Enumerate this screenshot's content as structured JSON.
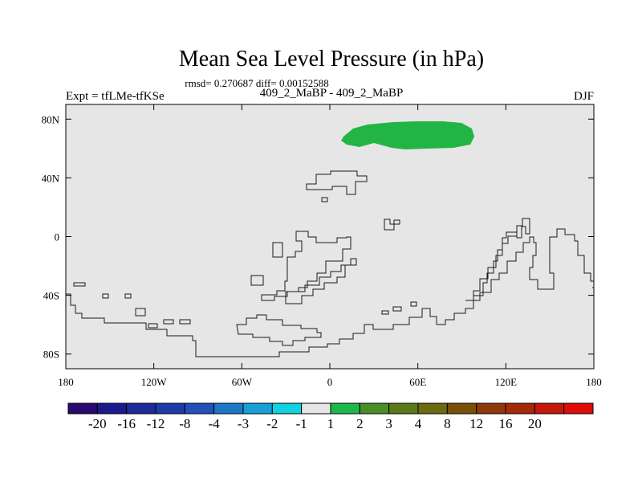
{
  "title": "Mean Sea Level Pressure (in hPa)",
  "stats": "rmsd= 0.270687 diff= 0.00152588",
  "left_label": "Expt = tfLMe-tfKSe",
  "center_label": "409_2_MaBP - 409_2_MaBP",
  "right_label": "DJF",
  "lat_ticks": [
    {
      "value": 80,
      "label": "80N"
    },
    {
      "value": 40,
      "label": "40N"
    },
    {
      "value": 0,
      "label": "0"
    },
    {
      "value": -40,
      "label": "40S"
    },
    {
      "value": -80,
      "label": "80S"
    }
  ],
  "lon_ticks": [
    {
      "value": -180,
      "label": "180"
    },
    {
      "value": -120,
      "label": "120W"
    },
    {
      "value": -60,
      "label": "60W"
    },
    {
      "value": 0,
      "label": "0"
    },
    {
      "value": 60,
      "label": "60E"
    },
    {
      "value": 120,
      "label": "120E"
    },
    {
      "value": 180,
      "label": "180"
    }
  ],
  "colorbar": {
    "colors": [
      "#2a0a6e",
      "#1a1a8c",
      "#1e2a9a",
      "#1e3ca8",
      "#2050b8",
      "#1e78c8",
      "#16a0d6",
      "#10d2e0",
      "#e6e6e6",
      "#1eb84a",
      "#4a8e28",
      "#5a7a1a",
      "#6e6a10",
      "#7a5008",
      "#8e3a08",
      "#a62a08",
      "#c41808",
      "#e00c08"
    ],
    "labels": [
      "-20",
      "-16",
      "-12",
      "-8",
      "-4",
      "-3",
      "-2",
      "-1",
      "1",
      "2",
      "3",
      "4",
      "8",
      "12",
      "16",
      "20"
    ],
    "background_color": "#e6e6e6",
    "anomaly_color": "#22b545"
  }
}
